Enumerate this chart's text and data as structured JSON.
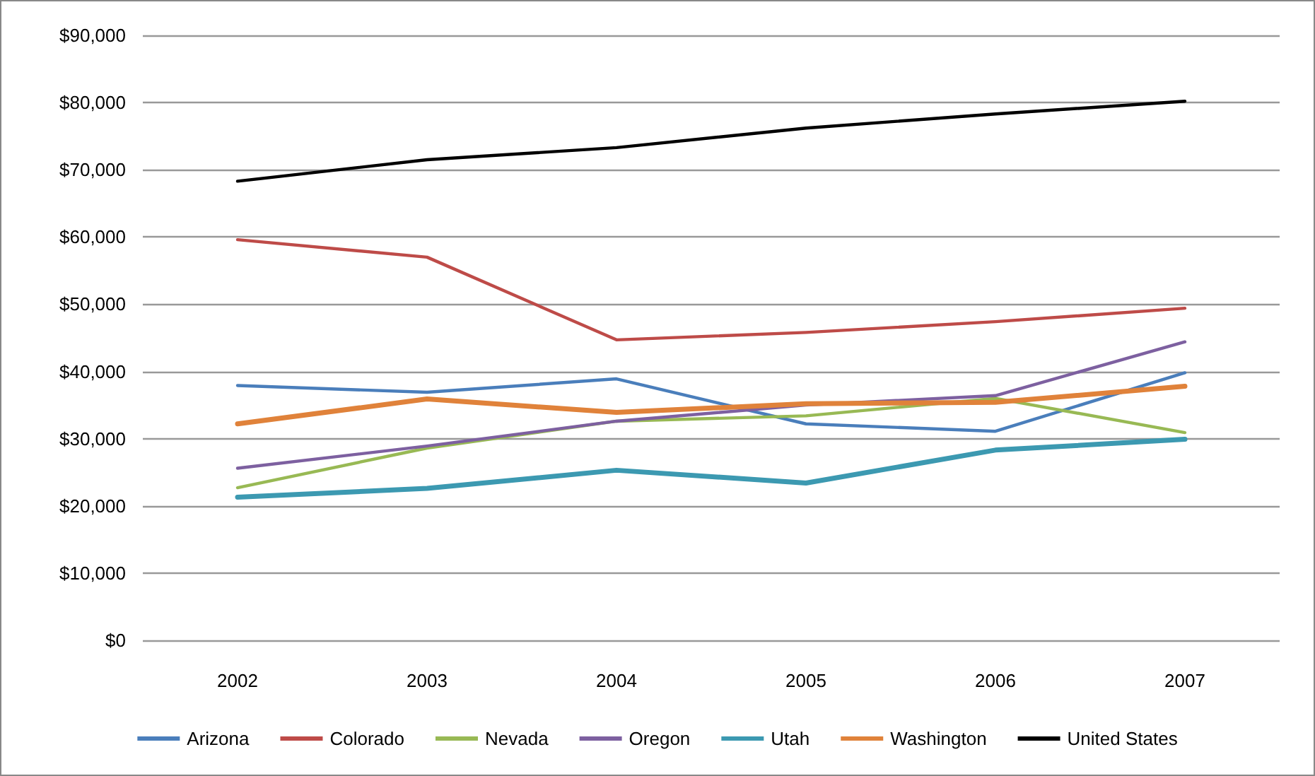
{
  "chart_data": {
    "type": "line",
    "categories": [
      "2002",
      "2003",
      "2004",
      "2005",
      "2006",
      "2007"
    ],
    "series": [
      {
        "name": "Arizona",
        "color": "#4a7ebb",
        "values": [
          37900,
          36900,
          38900,
          32200,
          31100,
          39800
        ]
      },
      {
        "name": "Colorado",
        "color": "#be4b48",
        "values": [
          59600,
          57000,
          44700,
          45800,
          47400,
          49400
        ]
      },
      {
        "name": "Nevada",
        "color": "#98b954",
        "values": [
          22700,
          28600,
          32600,
          33400,
          36000,
          30900
        ]
      },
      {
        "name": "Oregon",
        "color": "#7d60a0",
        "values": [
          25600,
          28900,
          32600,
          35000,
          36400,
          44400
        ]
      },
      {
        "name": "Utah",
        "color": "#3c99b1",
        "values": [
          21300,
          22600,
          25300,
          23400,
          28300,
          29900
        ]
      },
      {
        "name": "Washington",
        "color": "#e0823a",
        "values": [
          32200,
          35900,
          33900,
          35200,
          35400,
          37800
        ]
      },
      {
        "name": "United States",
        "color": "#000000",
        "values": [
          68300,
          71500,
          73300,
          76200,
          78300,
          80200
        ]
      }
    ],
    "ylim": [
      0,
      90000
    ],
    "yticks": [
      {
        "value": 0,
        "label": "$0"
      },
      {
        "value": 10000,
        "label": "$10,000"
      },
      {
        "value": 20000,
        "label": "$20,000"
      },
      {
        "value": 30000,
        "label": "$30,000"
      },
      {
        "value": 40000,
        "label": "$40,000"
      },
      {
        "value": 50000,
        "label": "$50,000"
      },
      {
        "value": 60000,
        "label": "$60,000"
      },
      {
        "value": 70000,
        "label": "$70,000"
      },
      {
        "value": 80000,
        "label": "$80,000"
      },
      {
        "value": 90000,
        "label": "$90,000"
      }
    ],
    "grid": "y",
    "legend": "bottom",
    "marker": "none",
    "line_style": "solid"
  }
}
